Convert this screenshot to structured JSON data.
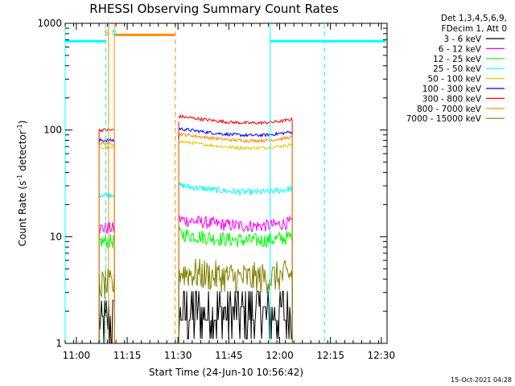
{
  "chart_data": {
    "type": "line",
    "title": "RHESSI Observing Summary Count Rates",
    "xlabel": "Start Time (24-Jun-10 10:56:42)",
    "ylabel_prefix": "Count Rate (s",
    "ylabel_sup": "-1",
    "ylabel_suffix": " detector",
    "ylabel_close": ")",
    "yscale": "log",
    "xlim_minutes": [
      0,
      95
    ],
    "ylim": [
      1,
      1000
    ],
    "x_ticks": [
      {
        "label": "11:00",
        "t": 3.3
      },
      {
        "label": "11:15",
        "t": 18.3
      },
      {
        "label": "11:30",
        "t": 33.3
      },
      {
        "label": "11:45",
        "t": 48.3
      },
      {
        "label": "12:00",
        "t": 63.3
      },
      {
        "label": "12:15",
        "t": 78.3
      },
      {
        "label": "12:30",
        "t": 93.3
      }
    ],
    "y_ticks": [
      {
        "label": "1",
        "v": 1
      },
      {
        "label": "10",
        "v": 10
      },
      {
        "label": "100",
        "v": 100
      },
      {
        "label": "1000",
        "v": 1000
      }
    ],
    "legend_header": [
      "Det 1,3,4,5,6,9,",
      "FDecim 1, Att 0"
    ],
    "series": [
      {
        "name": "3 - 6 keV",
        "color": "#000000",
        "seg1": 1.5,
        "seg2": 2.0,
        "noise": 0.35
      },
      {
        "name": "6 - 12 keV",
        "color": "#ff00ff",
        "seg1": 12,
        "seg2": 13,
        "noise": 0.06
      },
      {
        "name": "12 - 25 keV",
        "color": "#00ff00",
        "seg1": 9,
        "seg2": 9.5,
        "noise": 0.07
      },
      {
        "name": "25 - 50 keV",
        "color": "#00ffff",
        "seg1": 25,
        "seg2": 27,
        "noise": 0.03
      },
      {
        "name": "50 - 100 keV",
        "color": "#e6c800",
        "seg1": 68,
        "seg2": 70,
        "noise": 0.015
      },
      {
        "name": "100 - 300 keV",
        "color": "#0000ff",
        "seg1": 80,
        "seg2": 92,
        "noise": 0.015
      },
      {
        "name": "300 - 800 keV",
        "color": "#ff0000",
        "seg1": 100,
        "seg2": 120,
        "noise": 0.015
      },
      {
        "name": "800 - 7000 keV",
        "color": "#ff8c00",
        "seg1": 75,
        "seg2": 82,
        "noise": 0.015
      },
      {
        "name": "7000 - 15000 keV",
        "color": "#808000",
        "seg1": 3.5,
        "seg2": 4.2,
        "noise": 0.15
      }
    ],
    "data_intervals_minutes": [
      [
        10.0,
        14.5
      ],
      [
        33.5,
        67.0
      ]
    ],
    "annotations": [
      {
        "text": "S",
        "t": 12.2,
        "color": "#ff8c00"
      },
      {
        "text": "N",
        "t": 14.5,
        "color": "#00ffff"
      }
    ],
    "night_bars": [
      {
        "start": 0.0,
        "end": 12.0,
        "level": 680,
        "color": "#00ffff"
      },
      {
        "start": 60.5,
        "end": 94.5,
        "level": 680,
        "color": "#00ffff"
      }
    ],
    "saa_bar": {
      "start": 14.5,
      "end": 32.5,
      "level": 780,
      "color": "#ff8c00"
    },
    "markers": [
      {
        "t": 0.0,
        "color": "#00ffff",
        "style": "solid"
      },
      {
        "t": 12.0,
        "color": "#00ffff",
        "style": "dashed"
      },
      {
        "t": 12.8,
        "color": "#ff8c00",
        "style": "solid"
      },
      {
        "t": 14.5,
        "color": "#ff8c00",
        "style": "solid"
      },
      {
        "t": 32.5,
        "color": "#ff8c00",
        "style": "dashed"
      },
      {
        "t": 60.5,
        "color": "#00ffff",
        "style": "solid"
      },
      {
        "t": 76.5,
        "color": "#00ffff",
        "style": "dashed"
      }
    ],
    "footer_date": "15-Oct-2021 04:28"
  }
}
